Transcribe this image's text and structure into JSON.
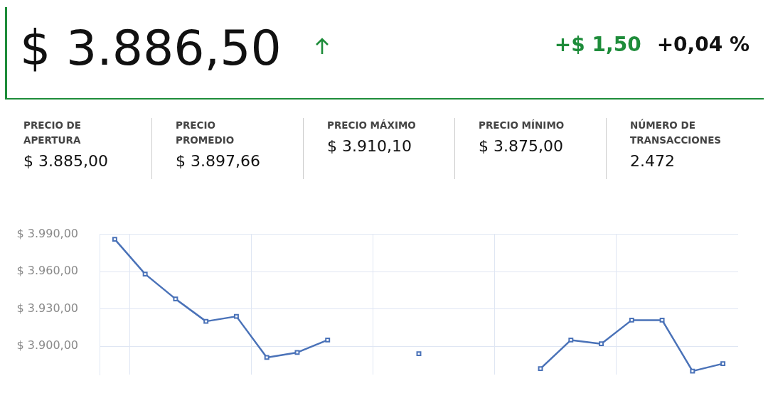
{
  "chart_data": [
    {
      "type": "other",
      "title": "$ 3.886,50",
      "annotations": [
        "+$ 1,50",
        "+0,04 %",
        "PRECIO DE\nAPERTURA",
        "$ 3.885,00",
        "PRECIO\nPROMEDIO",
        "$ 3.897,66",
        "PRECIO MÁXIMO",
        "$ 3.910,10",
        "PRECIO MÍNIMO",
        "$ 3.875,00",
        "NÚMERO DE\nTRANSACCIONES",
        "2.472"
      ]
    },
    {
      "type": "line",
      "categories": [
        null,
        null,
        null,
        null,
        null,
        null,
        null,
        null,
        null,
        null,
        null,
        null,
        null,
        null,
        null,
        null,
        null,
        null,
        null,
        null,
        null
      ],
      "series": [
        {
          "color": "#4a72b8",
          "values": [
            3986,
            3958,
            3938,
            3920,
            3924,
            3891,
            3895,
            3905,
            null,
            null,
            3894,
            null,
            null,
            null,
            3882,
            3905,
            3902,
            3921,
            3921,
            3880,
            3886
          ]
        }
      ],
      "ylim": [
        3877,
        3990
      ],
      "yticks": [
        {
          "value": 3900,
          "label": "$ 3.900,00"
        },
        {
          "value": 3930,
          "label": "$ 3.930,00"
        },
        {
          "value": 3960,
          "label": "$ 3.960,00"
        },
        {
          "value": 3990,
          "label": "$ 3.990,00"
        }
      ],
      "grid": true,
      "tick_labels": "y",
      "marker": "square",
      "line_style": "solid",
      "legend": false
    }
  ]
}
